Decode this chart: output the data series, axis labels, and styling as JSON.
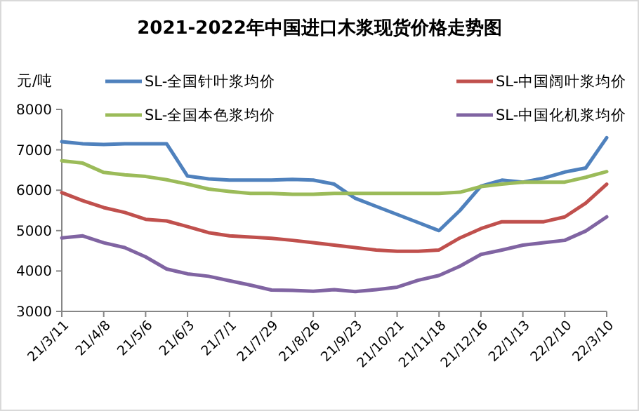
{
  "chart_data": {
    "type": "line",
    "title": "2021-2022年中国进口木浆现货价格走势图",
    "ylabel": "元/吨",
    "x": [
      "2021-03-11",
      "2021-03-25",
      "2021-04-08",
      "2021-04-22",
      "2021-05-06",
      "2021-05-20",
      "2021-06-03",
      "2021-06-17",
      "2021-07-01",
      "2021-07-15",
      "2021-07-29",
      "2021-08-12",
      "2021-08-26",
      "2021-09-09",
      "2021-09-23",
      "2021-10-07",
      "2021-10-21",
      "2021-11-04",
      "2021-11-18",
      "2021-12-02",
      "2021-12-16",
      "2021-12-30",
      "2022-01-13",
      "2022-01-27",
      "2022-02-10",
      "2022-02-24",
      "2022-03-10"
    ],
    "series": [
      {
        "name": "SL-全国针叶浆均价",
        "color": "#4f81bd",
        "values": [
          7200,
          7150,
          7130,
          7150,
          7150,
          7150,
          6350,
          6280,
          6250,
          6250,
          6250,
          6270,
          6250,
          6150,
          5800,
          5600,
          5400,
          5200,
          5000,
          5500,
          6100,
          6250,
          6200,
          6300,
          6450,
          6550,
          7300
        ]
      },
      {
        "name": "SL-中国阔叶浆均价",
        "color": "#c0504d",
        "values": [
          5940,
          5740,
          5570,
          5450,
          5280,
          5240,
          5100,
          4950,
          4870,
          4840,
          4810,
          4760,
          4700,
          4640,
          4580,
          4520,
          4490,
          4490,
          4520,
          4820,
          5050,
          5220,
          5220,
          5220,
          5340,
          5680,
          6150
        ]
      },
      {
        "name": "SL-全国本色浆均价",
        "color": "#9bbb59",
        "values": [
          6730,
          6670,
          6440,
          6380,
          6340,
          6260,
          6150,
          6030,
          5970,
          5920,
          5920,
          5900,
          5900,
          5920,
          5920,
          5920,
          5920,
          5920,
          5920,
          5950,
          6090,
          6150,
          6200,
          6200,
          6200,
          6320,
          6460
        ]
      },
      {
        "name": "SL-中国化机浆均价",
        "color": "#8064a2",
        "values": [
          4820,
          4870,
          4700,
          4580,
          4350,
          4050,
          3930,
          3870,
          3760,
          3650,
          3530,
          3520,
          3500,
          3540,
          3490,
          3540,
          3600,
          3770,
          3890,
          4120,
          4410,
          4520,
          4640,
          4700,
          4760,
          4990,
          5340
        ]
      }
    ],
    "ylim": [
      3000,
      8000
    ],
    "yticks": [
      3000,
      4000,
      5000,
      6000,
      7000,
      8000
    ],
    "xlim": [
      "2021-03-11",
      "2022-03-10"
    ],
    "xticks": [
      {
        "value": "2021-03-11",
        "label": "21/3/11"
      },
      {
        "value": "2021-04-08",
        "label": "21/4/8"
      },
      {
        "value": "2021-05-06",
        "label": "21/5/6"
      },
      {
        "value": "2021-06-03",
        "label": "21/6/3"
      },
      {
        "value": "2021-07-01",
        "label": "21/7/1"
      },
      {
        "value": "2021-07-29",
        "label": "21/7/29"
      },
      {
        "value": "2021-08-26",
        "label": "21/8/26"
      },
      {
        "value": "2021-09-23",
        "label": "21/9/23"
      },
      {
        "value": "2021-10-21",
        "label": "21/10/21"
      },
      {
        "value": "2021-11-18",
        "label": "21/11/18"
      },
      {
        "value": "2021-12-16",
        "label": "21/12/16"
      },
      {
        "value": "2022-01-13",
        "label": "22/1/13"
      },
      {
        "value": "2022-02-10",
        "label": "22/2/10"
      },
      {
        "value": "2022-03-10",
        "label": "22/3/10"
      }
    ],
    "grid": false,
    "legend": "top",
    "marker": "none",
    "line_style": "solid"
  }
}
